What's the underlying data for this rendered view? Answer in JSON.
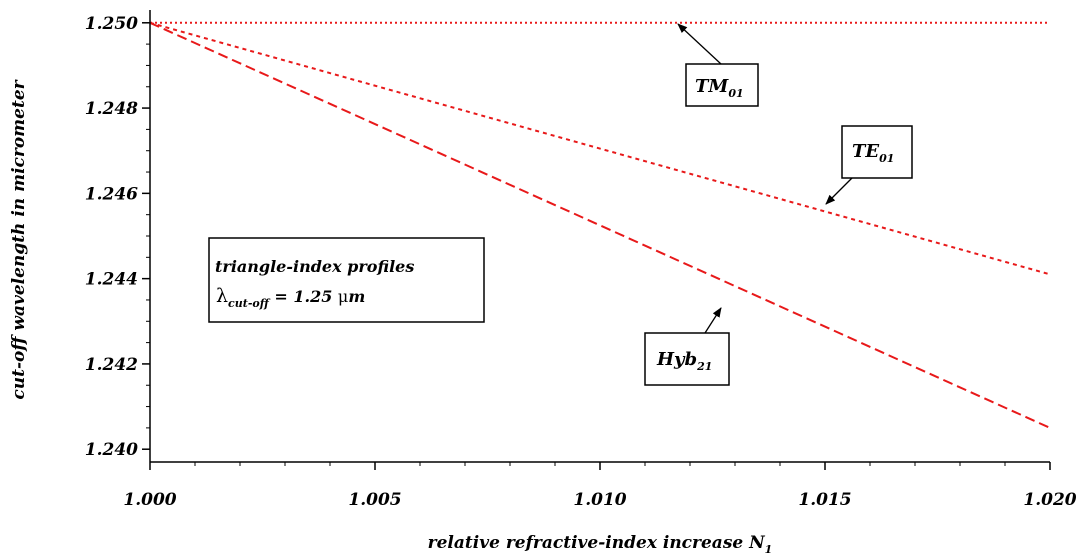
{
  "chart_data": {
    "type": "line",
    "xlabel": "relative refractive-index increase N",
    "xlabel_sub": "1",
    "ylabel": "cut-off wavelength in micrometer",
    "xlim": [
      1.0,
      1.02
    ],
    "ylim": [
      1.2397,
      1.2503
    ],
    "x_ticks": [
      "1.000",
      "1.005",
      "1.010",
      "1.015",
      "1.020"
    ],
    "y_ticks": [
      "1.240",
      "1.242",
      "1.244",
      "1.246",
      "1.248",
      "1.250"
    ],
    "grid": false,
    "color": "#e8191a",
    "series": [
      {
        "name": "TM01",
        "style": "dotted",
        "x": [
          1.0,
          1.02
        ],
        "y": [
          1.25,
          1.25
        ]
      },
      {
        "name": "TE01",
        "style": "short-dash",
        "x": [
          1.0,
          1.02
        ],
        "y": [
          1.25,
          1.2441
        ]
      },
      {
        "name": "Hyb21",
        "style": "dash",
        "x": [
          1.0,
          1.02
        ],
        "y": [
          1.25,
          1.2405
        ]
      }
    ],
    "annotations": [
      {
        "main": "TM",
        "sub": "01"
      },
      {
        "main": "TE",
        "sub": "01"
      },
      {
        "main": "Hyb",
        "sub": "21"
      }
    ],
    "info_box": {
      "line1": "triangle-index profiles",
      "symbol": "λ",
      "symbol_sub": "cut-off",
      "value": " = 1.25 ",
      "unit_mu": "μ",
      "unit_m": "m"
    }
  }
}
